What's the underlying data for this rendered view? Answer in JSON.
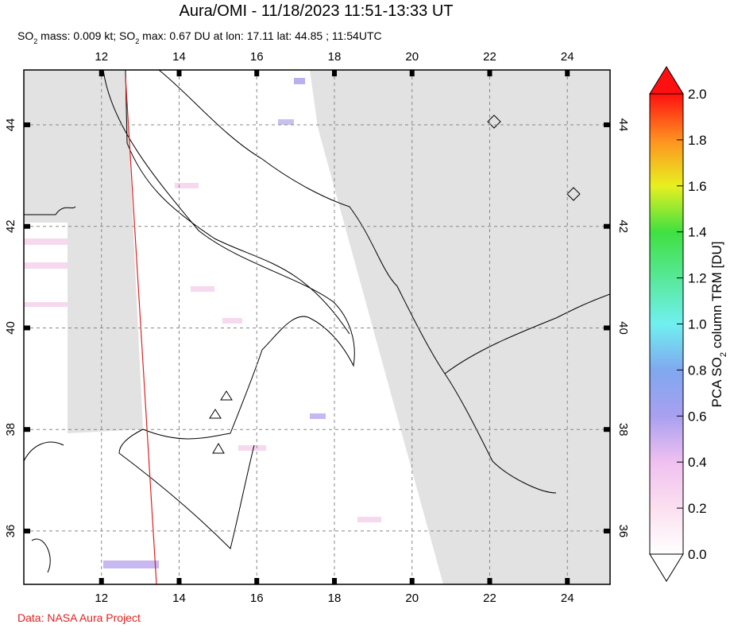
{
  "title": "Aura/OMI - 11/18/2023 11:51-13:33 UT",
  "subtitle": [
    "SO",
    "2",
    " mass: 0.009 kt; SO",
    "2",
    " max: 0.67 DU at lon: 17.11 lat: 44.85 ; 11:54UTC"
  ],
  "map": {
    "xlim": [
      10,
      25.1
    ],
    "ylim": [
      34.95,
      45.08
    ],
    "xticks": [
      12,
      14,
      16,
      18,
      20,
      22,
      24
    ],
    "yticks": [
      36,
      38,
      40,
      42,
      44
    ]
  },
  "colorbar": {
    "label": [
      "PCA SO",
      "2",
      " column TRM [DU]"
    ],
    "lim": [
      0,
      2
    ],
    "ticks": [
      {
        "value": 0,
        "label": "0.0"
      },
      0.2,
      0.4,
      0.6,
      0.8,
      {
        "value": 1,
        "label": "1.0"
      },
      1.2,
      1.4,
      1.6,
      1.8,
      {
        "value": 2,
        "label": "2.0"
      }
    ]
  },
  "footer": "Data: NASA Aura Project"
}
